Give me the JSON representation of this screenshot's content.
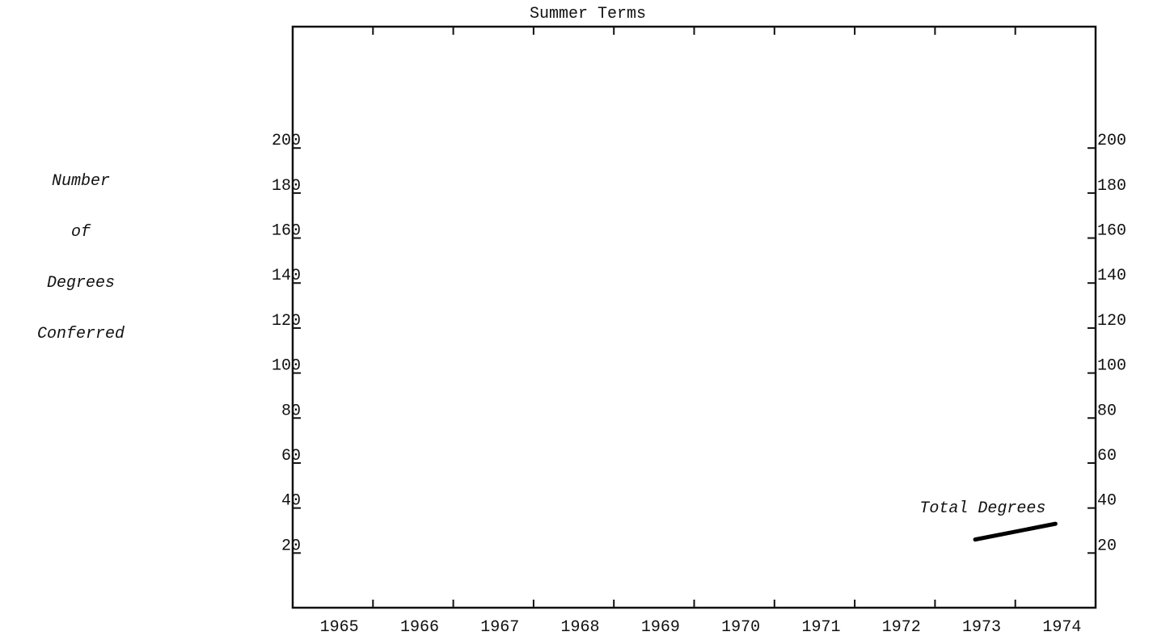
{
  "chart_data": {
    "type": "line",
    "title": "Summer Terms",
    "ylabel_lines": [
      "Number",
      "of",
      "Degrees",
      "Conferred"
    ],
    "categories": [
      "1965",
      "1966",
      "1967",
      "1968",
      "1969",
      "1970",
      "1971",
      "1972",
      "1973",
      "1974"
    ],
    "series": [
      {
        "name": "Total Degrees",
        "color": "#000000",
        "values": [
          null,
          null,
          null,
          null,
          null,
          null,
          null,
          null,
          26,
          33
        ]
      }
    ],
    "ylim": [
      0,
      250
    ],
    "yticks": [
      20,
      40,
      60,
      80,
      100,
      120,
      140,
      160,
      180,
      200
    ],
    "grid": false
  }
}
